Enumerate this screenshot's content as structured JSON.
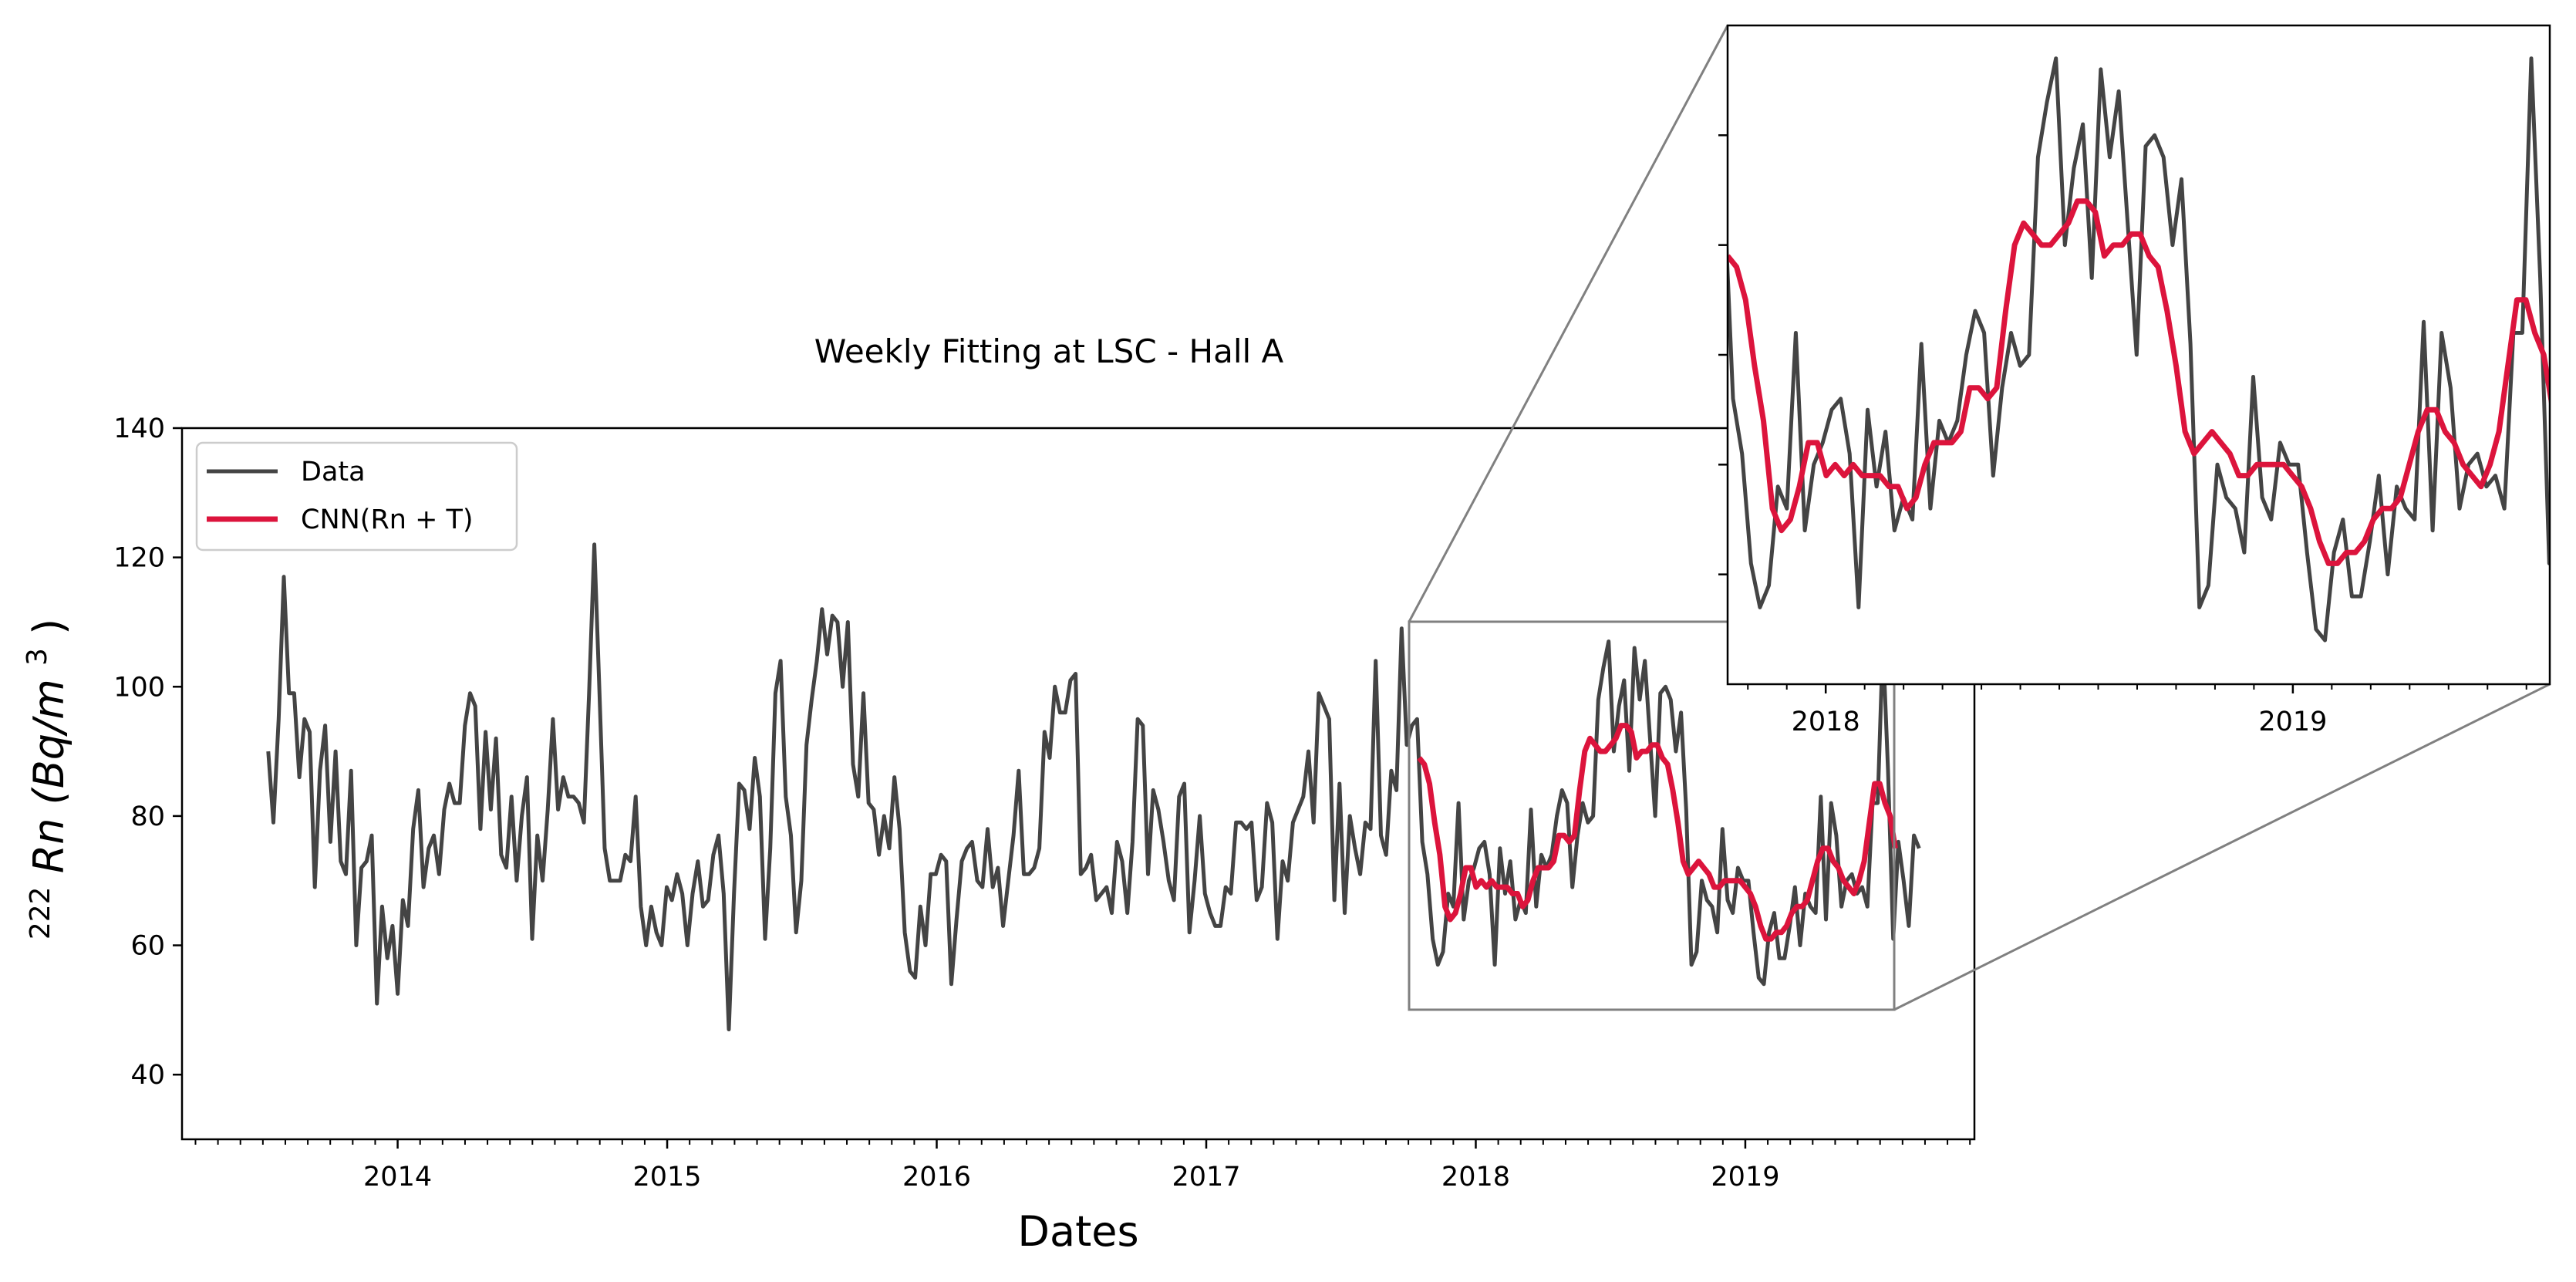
{
  "chart_data": {
    "type": "line",
    "title": "Weekly Fitting at LSC - Hall A",
    "xlabel": "Dates",
    "ylabel_sup": "222",
    "ylabel_main": "Rn (Bq/m",
    "ylabel_exp": "3",
    "ylabel_close": ")",
    "ylim": [
      30,
      140
    ],
    "yticks": [
      40,
      60,
      80,
      100,
      120,
      140
    ],
    "xlim": [
      2013.2,
      2019.85
    ],
    "xticks": [
      {
        "label": "2014",
        "value": 2014
      },
      {
        "label": "2015",
        "value": 2015
      },
      {
        "label": "2016",
        "value": 2016
      },
      {
        "label": "2017",
        "value": 2017
      },
      {
        "label": "2018",
        "value": 2018
      },
      {
        "label": "2019",
        "value": 2019
      }
    ],
    "legend": {
      "placement": "upper-left"
    },
    "series": [
      {
        "name": "Data",
        "color": "#444444",
        "x_start": 2013.52,
        "x_step": 0.0192,
        "values": [
          90,
          79,
          95,
          117,
          99,
          99,
          86,
          95,
          93,
          69,
          87,
          94,
          76,
          90,
          73,
          71,
          87,
          60,
          72,
          73,
          77,
          51,
          66,
          58,
          63,
          52.5,
          67,
          63,
          78,
          84,
          69,
          75,
          77,
          71,
          81,
          85,
          82,
          82,
          94,
          99,
          97,
          78,
          93,
          81,
          92,
          74,
          72,
          83,
          70,
          80,
          86,
          61,
          77,
          70,
          81,
          95,
          81,
          86,
          83,
          83,
          82,
          79,
          99,
          122,
          99,
          75,
          70,
          70,
          70,
          74,
          73,
          83,
          66,
          60,
          66,
          62,
          60,
          69,
          67,
          71,
          68,
          60,
          68,
          73,
          66,
          67,
          74,
          77,
          68,
          47,
          68,
          85,
          84,
          78,
          89,
          83,
          61,
          75,
          99,
          104,
          83,
          77,
          62,
          70,
          91,
          98,
          104,
          112,
          105,
          111,
          110,
          100,
          110,
          88,
          83,
          99,
          82,
          81,
          74,
          80,
          75,
          86,
          78,
          62,
          56,
          55,
          66,
          60,
          71,
          71,
          74,
          73,
          54,
          64,
          73,
          75,
          76,
          70,
          69,
          78,
          69,
          72,
          63,
          70,
          77,
          87,
          71,
          71,
          72,
          75,
          93,
          89,
          100,
          96,
          96,
          101,
          102,
          71,
          72,
          74,
          67,
          68,
          69,
          65,
          76,
          73,
          65,
          76,
          95,
          94,
          71,
          84,
          81,
          76,
          70,
          67,
          83,
          85,
          62,
          70,
          80,
          68,
          65,
          63,
          63,
          69,
          68,
          79,
          79,
          78,
          79,
          67,
          69,
          82,
          79,
          61,
          73,
          70,
          79,
          81,
          83,
          90,
          79,
          99,
          97,
          95,
          67,
          85,
          65,
          80,
          75,
          71,
          79,
          78,
          104,
          77,
          74,
          87,
          84,
          109,
          91,
          94,
          95,
          76,
          71,
          61,
          57,
          59,
          68,
          66,
          82,
          64,
          70,
          72,
          75,
          76,
          71,
          57,
          75,
          68,
          73,
          64,
          67,
          65,
          81,
          66,
          74,
          72,
          74,
          80,
          84,
          82,
          69,
          77,
          82,
          79,
          80,
          98,
          103,
          107,
          90,
          97,
          101,
          87,
          106,
          98,
          104,
          92,
          80,
          99,
          100,
          98,
          90,
          96,
          81,
          57,
          59,
          70,
          67,
          66,
          62,
          78,
          67,
          65,
          72,
          70,
          70,
          62,
          55,
          54,
          62,
          65,
          58,
          58,
          63,
          69,
          60,
          68,
          66,
          65,
          83,
          64,
          82,
          77,
          66,
          70,
          71,
          68,
          69,
          66,
          82,
          82,
          107,
          87,
          61,
          76,
          70,
          63,
          77,
          75
        ],
        "width": 5
      },
      {
        "name": "CNN(Rn + T)",
        "color": "#dc143c",
        "x_start": 2017.79,
        "x_step": 0.0192,
        "values": [
          89,
          88,
          85,
          79,
          74,
          66,
          64,
          65,
          68,
          72,
          72,
          69,
          70,
          69,
          70,
          69,
          69,
          69,
          68,
          68,
          66,
          67,
          70,
          72,
          72,
          72,
          73,
          77,
          77,
          76,
          77,
          84,
          90,
          92,
          91,
          90,
          90,
          91,
          92,
          94,
          94,
          93,
          89,
          90,
          90,
          91,
          91,
          89,
          88,
          84,
          79,
          73,
          71,
          72,
          73,
          72,
          71,
          69,
          69,
          70,
          70,
          70,
          70,
          69,
          68,
          66,
          63,
          61,
          61,
          62,
          62,
          63,
          65,
          66,
          66,
          67,
          70,
          73,
          75,
          75,
          73,
          72,
          70,
          69,
          68,
          70,
          73,
          79,
          85,
          85,
          82,
          80,
          75
        ],
        "width": 7
      }
    ],
    "inset": {
      "xlim": [
        2017.79,
        2019.55
      ],
      "ylim": [
        50,
        110
      ],
      "xticks": [
        {
          "label": "2018",
          "value": 2018
        },
        {
          "label": "2019",
          "value": 2019
        }
      ]
    }
  }
}
